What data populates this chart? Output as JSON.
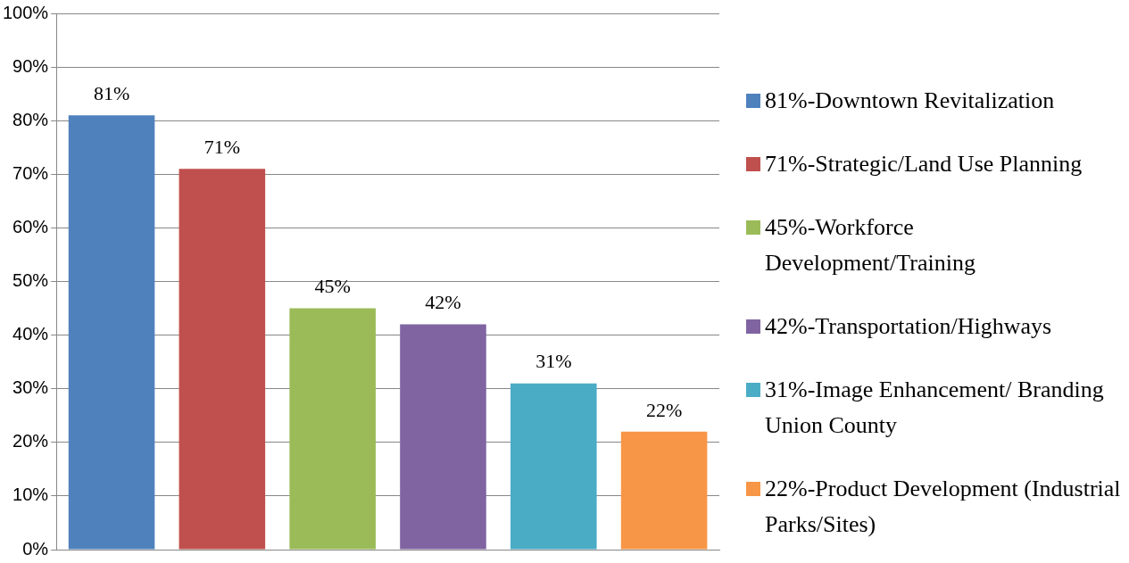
{
  "chart_data": {
    "type": "bar",
    "categories": [
      null,
      null,
      null,
      null,
      null,
      null
    ],
    "ylim": [
      0,
      100
    ],
    "yticks": [
      {
        "value": 0,
        "label": "0%"
      },
      {
        "value": 10,
        "label": "10%"
      },
      {
        "value": 20,
        "label": "20%"
      },
      {
        "value": 30,
        "label": "30%"
      },
      {
        "value": 40,
        "label": "40%"
      },
      {
        "value": 50,
        "label": "50%"
      },
      {
        "value": 60,
        "label": "60%"
      },
      {
        "value": 70,
        "label": "70%"
      },
      {
        "value": 80,
        "label": "80%"
      },
      {
        "value": 90,
        "label": "90%"
      },
      {
        "value": 100,
        "label": "100%"
      }
    ],
    "grid": "y",
    "legend": "right",
    "series": [
      {
        "name": "81%-Downtown Revitalization",
        "color": "#4f81bd",
        "values": [
          81,
          null,
          null,
          null,
          null,
          null
        ],
        "value_labels": [
          "81%",
          null,
          null,
          null,
          null,
          null
        ]
      },
      {
        "name": "71%-Strategic/Land Use Planning",
        "color": "#c0504d",
        "values": [
          null,
          71,
          null,
          null,
          null,
          null
        ],
        "value_labels": [
          null,
          "71%",
          null,
          null,
          null,
          null
        ]
      },
      {
        "name": "45%-Workforce Development/Training",
        "color": "#9bbb59",
        "values": [
          null,
          null,
          45,
          null,
          null,
          null
        ],
        "value_labels": [
          null,
          null,
          "45%",
          null,
          null,
          null
        ]
      },
      {
        "name": "42%-Transportation/Highways",
        "color": "#8064a2",
        "values": [
          null,
          null,
          null,
          42,
          null,
          null
        ],
        "value_labels": [
          null,
          null,
          null,
          "42%",
          null,
          null
        ]
      },
      {
        "name": "31%-Image Enhancement/ Branding Union County",
        "color": "#4bacc6",
        "values": [
          null,
          null,
          null,
          null,
          31,
          null
        ],
        "value_labels": [
          null,
          null,
          null,
          null,
          "31%",
          null
        ]
      },
      {
        "name": "22%-Product Development (Industrial Parks/Sites)",
        "color": "#f79646",
        "values": [
          null,
          null,
          null,
          null,
          null,
          22
        ],
        "value_labels": [
          null,
          null,
          null,
          null,
          null,
          "22%"
        ]
      }
    ]
  }
}
